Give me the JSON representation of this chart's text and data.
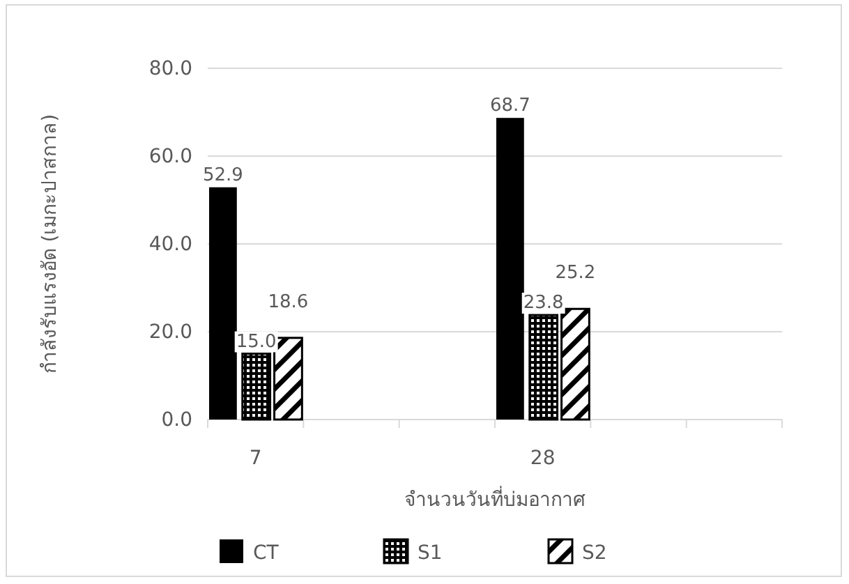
{
  "chart_data": {
    "type": "bar",
    "xlabel": "จำนวนวันที่บ่มอากาศ",
    "ylabel": "กำลังรับแรงอัด (เมกะปาสกาล)",
    "categories": [
      "7",
      null,
      null,
      "28",
      null,
      null
    ],
    "series": [
      {
        "name": "CT",
        "color": "#000000",
        "values": [
          52.9,
          null,
          null,
          68.7,
          null,
          null
        ],
        "value_labels": [
          "52.9",
          null,
          null,
          "68.7",
          null,
          null
        ]
      },
      {
        "name": "S1",
        "color": "#000000",
        "values": [
          15.0,
          null,
          null,
          23.8,
          null,
          null
        ],
        "value_labels": [
          "15.0",
          null,
          null,
          "23.8",
          null,
          null
        ]
      },
      {
        "name": "S2",
        "color": "#000000",
        "values": [
          18.6,
          null,
          null,
          25.2,
          null,
          null
        ],
        "value_labels": [
          "18.6",
          null,
          null,
          "25.2",
          null,
          null
        ]
      }
    ],
    "ylim": [
      0,
      80
    ],
    "yticks": [
      {
        "value": 0,
        "label": "0.0"
      },
      {
        "value": 20,
        "label": "20.0"
      },
      {
        "value": 40,
        "label": "40.0"
      },
      {
        "value": 60,
        "label": "60.0"
      },
      {
        "value": 80,
        "label": "80.0"
      }
    ],
    "grid": "y",
    "legend": "bottom"
  }
}
